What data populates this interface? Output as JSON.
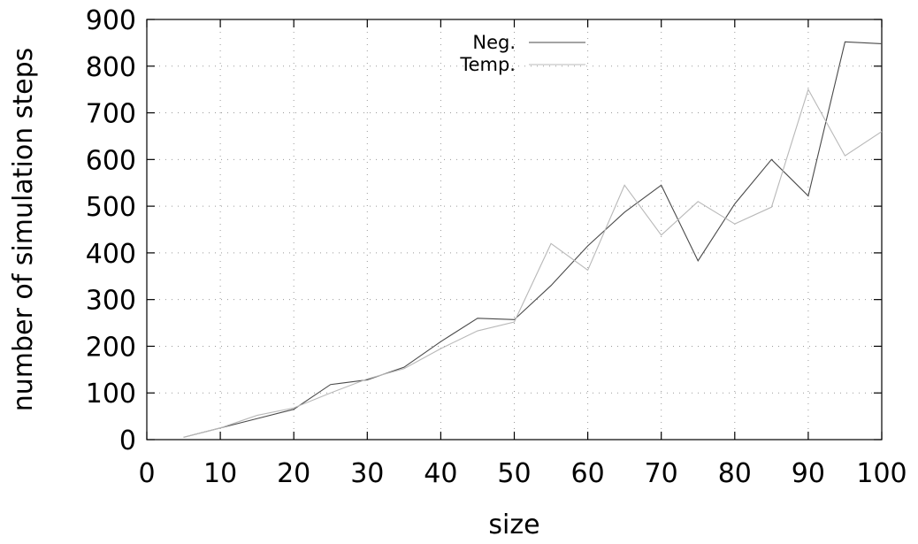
{
  "chart_data": {
    "type": "line",
    "xlabel": "size",
    "ylabel": "number of simulation steps",
    "xlim": [
      0,
      100
    ],
    "ylim": [
      0,
      900
    ],
    "xticks": [
      0,
      10,
      20,
      30,
      40,
      50,
      60,
      70,
      80,
      90,
      100
    ],
    "yticks": [
      0,
      100,
      200,
      300,
      400,
      500,
      600,
      700,
      800,
      900
    ],
    "grid": true,
    "legend_position": "top-center",
    "series": [
      {
        "name": "Neg.",
        "color": "#4a4a4a",
        "x": [
          5,
          10,
          15,
          20,
          25,
          30,
          35,
          40,
          45,
          50,
          55,
          60,
          65,
          70,
          75,
          80,
          85,
          90,
          95,
          100
        ],
        "y": [
          5,
          25,
          45,
          65,
          118,
          128,
          155,
          210,
          260,
          257,
          330,
          415,
          487,
          545,
          383,
          505,
          600,
          522,
          852,
          848
        ]
      },
      {
        "name": "Temp.",
        "color": "#b8b8b8",
        "x": [
          5,
          10,
          15,
          20,
          25,
          30,
          35,
          40,
          45,
          50,
          55,
          60,
          65,
          70,
          75,
          80,
          85,
          90,
          95,
          100
        ],
        "y": [
          5,
          25,
          52,
          68,
          100,
          130,
          152,
          195,
          233,
          252,
          420,
          363,
          545,
          438,
          510,
          462,
          498,
          750,
          608,
          660
        ]
      }
    ]
  }
}
